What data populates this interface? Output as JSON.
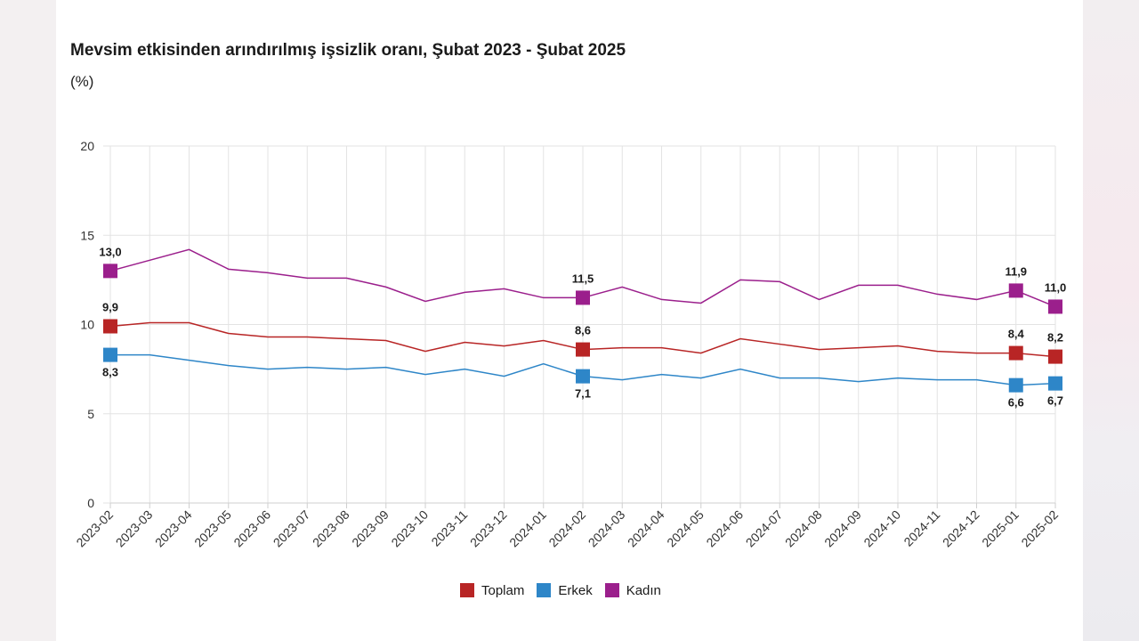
{
  "chart_data": {
    "type": "line",
    "title": "Mevsim etkisinden arındırılmış işsizlik oranı, Şubat 2023 - Şubat 2025",
    "subtitle": "(%)",
    "xlabel": "",
    "ylabel": "",
    "ylim": [
      0,
      20
    ],
    "yticks": [
      "0",
      "5",
      "10",
      "15",
      "20"
    ],
    "grid": true,
    "legend_position": "bottom",
    "categories": [
      "2023-02",
      "2023-03",
      "2023-04",
      "2023-05",
      "2023-06",
      "2023-07",
      "2023-08",
      "2023-09",
      "2023-10",
      "2023-11",
      "2023-12",
      "2024-01",
      "2024-02",
      "2024-03",
      "2024-04",
      "2024-05",
      "2024-06",
      "2024-07",
      "2024-08",
      "2024-09",
      "2024-10",
      "2024-11",
      "2024-12",
      "2025-01",
      "2025-02"
    ],
    "series": [
      {
        "name": "Toplam",
        "color": "#b82525",
        "values": [
          9.9,
          10.1,
          10.1,
          9.5,
          9.3,
          9.3,
          9.2,
          9.1,
          8.5,
          9.0,
          8.8,
          9.1,
          8.6,
          8.7,
          8.7,
          8.4,
          9.2,
          8.9,
          8.6,
          8.7,
          8.8,
          8.5,
          8.4,
          8.4,
          8.2
        ],
        "labels": {
          "0": "9,9",
          "12": "8,6",
          "23": "8,4",
          "24": "8,2"
        }
      },
      {
        "name": "Erkek",
        "color": "#2e86c8",
        "values": [
          8.3,
          8.3,
          8.0,
          7.7,
          7.5,
          7.6,
          7.5,
          7.6,
          7.2,
          7.5,
          7.1,
          7.8,
          7.1,
          6.9,
          7.2,
          7.0,
          7.5,
          7.0,
          7.0,
          6.8,
          7.0,
          6.9,
          6.9,
          6.6,
          6.7
        ],
        "labels": {
          "0": "8,3",
          "12": "7,1",
          "23": "6,6",
          "24": "6,7"
        }
      },
      {
        "name": "Kadın",
        "color": "#9b1f8c",
        "values": [
          13.0,
          13.6,
          14.2,
          13.1,
          12.9,
          12.6,
          12.6,
          12.1,
          11.3,
          11.8,
          12.0,
          11.5,
          11.5,
          12.1,
          11.4,
          11.2,
          12.5,
          12.4,
          11.4,
          12.2,
          12.2,
          11.7,
          11.4,
          11.9,
          11.0
        ],
        "labels": {
          "0": "13,0",
          "12": "11,5",
          "23": "11,9",
          "24": "11,0"
        }
      }
    ]
  }
}
